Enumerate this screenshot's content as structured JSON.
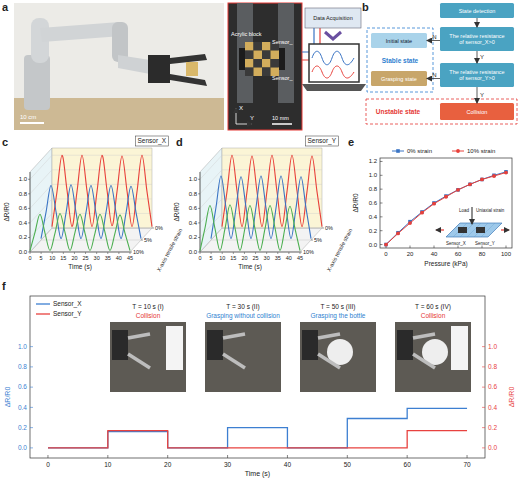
{
  "panels": [
    "a",
    "b",
    "c",
    "d",
    "e",
    "f"
  ],
  "photo": {
    "scale_bar": "10 cm",
    "inset_scale_bar": "10 mm",
    "block_label": "Acrylic block",
    "sensor_labels": [
      "Sensor_",
      "Sensor_"
    ],
    "axis_labels": [
      "X",
      "Y"
    ],
    "acquisition": "Data Acquisition"
  },
  "flowchart": {
    "nodes": [
      {
        "label": "State detection"
      },
      {
        "label": "The relative resistance of sensor_X>0"
      },
      {
        "label": "Initial state"
      },
      {
        "label": "The relative resistance of sensor_Y>0"
      },
      {
        "label": "Grasping state"
      },
      {
        "label": "Collision"
      }
    ],
    "edges": [
      {
        "from": 0,
        "to": 1
      },
      {
        "from": 1,
        "to": 2,
        "label": "N"
      },
      {
        "from": 1,
        "to": 3,
        "label": "Y"
      },
      {
        "from": 3,
        "to": 4,
        "label": "N"
      },
      {
        "from": 3,
        "to": 5,
        "label": "Y"
      }
    ],
    "groups": [
      {
        "label": "Stable state",
        "color": "#2f7fd0"
      },
      {
        "label": "Unstable state",
        "color": "#e53935"
      }
    ]
  },
  "chart_data": [
    {
      "type": "waterfall",
      "title": "Sensor_X",
      "x_label": "Time (s)",
      "y_label": "ΔR/R0",
      "z_label": "X-axis tensile strain",
      "xlim": [
        0,
        45
      ],
      "xticks": [
        0,
        5,
        10,
        15,
        20,
        25,
        30,
        35,
        40,
        45
      ],
      "ylim": [
        0,
        1.1
      ],
      "yticks": [
        {
          "value": 0,
          "label": "0.0"
        },
        0.2,
        0.4,
        0.6,
        0.8,
        {
          "value": 1,
          "label": "1.0"
        }
      ],
      "zlim": [
        0,
        10
      ],
      "zticks": [
        {
          "value": 0,
          "label": "0%"
        },
        {
          "value": 5,
          "label": "5%"
        },
        {
          "value": 10,
          "label": "10%"
        }
      ],
      "grid": true,
      "x": [
        0,
        2.25,
        4.5,
        6.75,
        9,
        11.25,
        13.5,
        15.75,
        18,
        20.25,
        22.5,
        24.75,
        27,
        29.25,
        31.5,
        33.75,
        36,
        38.25,
        40.5,
        42.75,
        45
      ],
      "series": [
        {
          "z": 0,
          "color": "#e8403a",
          "values": [
            0.02,
            0.5,
            1.0,
            0.52,
            0.02,
            0.5,
            1.0,
            0.51,
            0.02,
            0.5,
            1.0,
            0.52,
            0.03,
            0.5,
            0.99,
            0.51,
            0.02,
            0.5,
            1.0,
            0.5,
            0.02
          ]
        },
        {
          "z": 5,
          "color": "#3a74c4",
          "values": [
            0.02,
            0.38,
            0.75,
            0.39,
            0.02,
            0.37,
            0.76,
            0.38,
            0.02,
            0.38,
            0.75,
            0.37,
            0.02,
            0.38,
            0.75,
            0.38,
            0.02,
            0.37,
            0.74,
            0.38,
            0.02
          ]
        },
        {
          "z": 10,
          "color": "#4caf50",
          "values": [
            0.02,
            0.27,
            0.52,
            0.26,
            0.02,
            0.26,
            0.53,
            0.27,
            0.02,
            0.27,
            0.52,
            0.26,
            0.02,
            0.26,
            0.52,
            0.27,
            0.02,
            0.26,
            0.51,
            0.26,
            0.02
          ]
        }
      ]
    },
    {
      "type": "waterfall",
      "title": "Sensor_Y",
      "x_label": "Time (s)",
      "y_label": "ΔR/R0",
      "z_label": "X-axis tensile strain",
      "xlim": [
        0,
        45
      ],
      "xticks": [
        0,
        5,
        10,
        15,
        20,
        25,
        30,
        35,
        40,
        45
      ],
      "ylim": [
        0,
        1.1
      ],
      "yticks": [
        {
          "value": 0,
          "label": "0.0"
        },
        0.2,
        0.4,
        0.6,
        0.8,
        {
          "value": 1,
          "label": "1.0"
        }
      ],
      "zlim": [
        0,
        10
      ],
      "zticks": [
        {
          "value": 0,
          "label": "0%"
        },
        {
          "value": 5,
          "label": "5%"
        },
        {
          "value": 10,
          "label": "10%"
        }
      ],
      "grid": true,
      "x": [
        0,
        2.25,
        4.5,
        6.75,
        9,
        11.25,
        13.5,
        15.75,
        18,
        20.25,
        22.5,
        24.75,
        27,
        29.25,
        31.5,
        33.75,
        36,
        38.25,
        40.5,
        42.75,
        45
      ],
      "series": [
        {
          "z": 0,
          "color": "#e8403a",
          "values": [
            0.02,
            0.5,
            1.0,
            0.51,
            0.02,
            0.5,
            0.99,
            0.5,
            0.02,
            0.51,
            1.0,
            0.5,
            0.02,
            0.5,
            1.0,
            0.51,
            0.02,
            0.5,
            0.99,
            0.5,
            0.02
          ]
        },
        {
          "z": 5,
          "color": "#3a74c4",
          "values": [
            0.02,
            0.45,
            0.88,
            0.44,
            0.02,
            0.44,
            0.87,
            0.45,
            0.02,
            0.45,
            0.88,
            0.44,
            0.02,
            0.44,
            0.88,
            0.45,
            0.02,
            0.44,
            0.87,
            0.44,
            0.02
          ]
        },
        {
          "z": 10,
          "color": "#4caf50",
          "values": [
            0.02,
            0.33,
            0.64,
            0.32,
            0.02,
            0.32,
            0.65,
            0.33,
            0.02,
            0.33,
            0.64,
            0.32,
            0.02,
            0.32,
            0.64,
            0.33,
            0.02,
            0.33,
            0.63,
            0.32,
            0.02
          ]
        }
      ]
    },
    {
      "type": "line",
      "x_label": "Pressure (kPa)",
      "y_label": "ΔR/R0",
      "legend": "top",
      "xlim": [
        -5,
        105
      ],
      "xticks": [
        0,
        20,
        40,
        60,
        80,
        100
      ],
      "ylim": [
        -0.05,
        1.25
      ],
      "yticks": [
        {
          "value": 0,
          "label": "0.0"
        },
        0.2,
        0.4,
        0.6,
        0.8,
        {
          "value": 1,
          "label": "1.0"
        },
        1.2
      ],
      "x": [
        0,
        10,
        20,
        30,
        40,
        50,
        60,
        70,
        80,
        90,
        100
      ],
      "series": [
        {
          "name": "0% strain",
          "color": "#3a74c4",
          "marker": "square",
          "values": [
            0,
            0.17,
            0.33,
            0.47,
            0.6,
            0.7,
            0.79,
            0.87,
            0.94,
            1.0,
            1.05
          ]
        },
        {
          "name": "10% strain",
          "color": "#e8403a",
          "marker": "circle",
          "values": [
            0,
            0.16,
            0.31,
            0.46,
            0.59,
            0.69,
            0.79,
            0.87,
            0.94,
            0.99,
            1.04
          ]
        }
      ],
      "inset_labels": [
        "Load",
        "Uniaxial strain",
        "Sensor_X",
        "Sensor_Y"
      ]
    },
    {
      "type": "line",
      "x_label": "Time (s)",
      "y_label": "ΔR/R0",
      "y2_label": "ΔR/R0",
      "legend": "upper left",
      "xlim": [
        -3,
        73
      ],
      "xticks": [
        0,
        10,
        20,
        30,
        40,
        50,
        60,
        70
      ],
      "ylim": [
        -0.1,
        1.5
      ],
      "yticks": [
        {
          "value": 0,
          "label": "0.0"
        },
        0.2,
        0.4,
        0.6,
        0.8,
        {
          "value": 1,
          "label": "1.0"
        }
      ],
      "y2lim": [
        -0.1,
        1.5
      ],
      "y2ticks": [
        {
          "value": 0,
          "label": "0.0"
        },
        0.2,
        0.4,
        0.6,
        0.8,
        {
          "value": 1,
          "label": "1.0"
        }
      ],
      "x": [
        0,
        10,
        10,
        20,
        20,
        30,
        30,
        40,
        40,
        50,
        50,
        60,
        60,
        70
      ],
      "series": [
        {
          "name": "Sensor_X",
          "color": "#3d7fd1",
          "values": [
            0,
            0,
            0.16,
            0.16,
            0,
            0,
            0.2,
            0.2,
            0,
            0,
            0.29,
            0.29,
            0.39,
            0.39
          ]
        },
        {
          "name": "Sensor_Y",
          "color": "#e8423f",
          "axis": "y2",
          "values": [
            0,
            0,
            0.17,
            0.17,
            0,
            0,
            0,
            0,
            0,
            0,
            0,
            0,
            0.17,
            0.17
          ]
        }
      ],
      "annotations": [
        {
          "label": "T = 10 s (I)",
          "state": "Collision",
          "color": "#e53935"
        },
        {
          "label": "T = 30 s (II)",
          "state": "Grasping without collision",
          "color": "#2f7fd0"
        },
        {
          "label": "T = 50 s (III)",
          "state": "Grasping the bottle",
          "color": "#2f7fd0"
        },
        {
          "label": "T = 60 s (IV)",
          "state": "Collision",
          "color": "#e53935"
        }
      ]
    }
  ]
}
